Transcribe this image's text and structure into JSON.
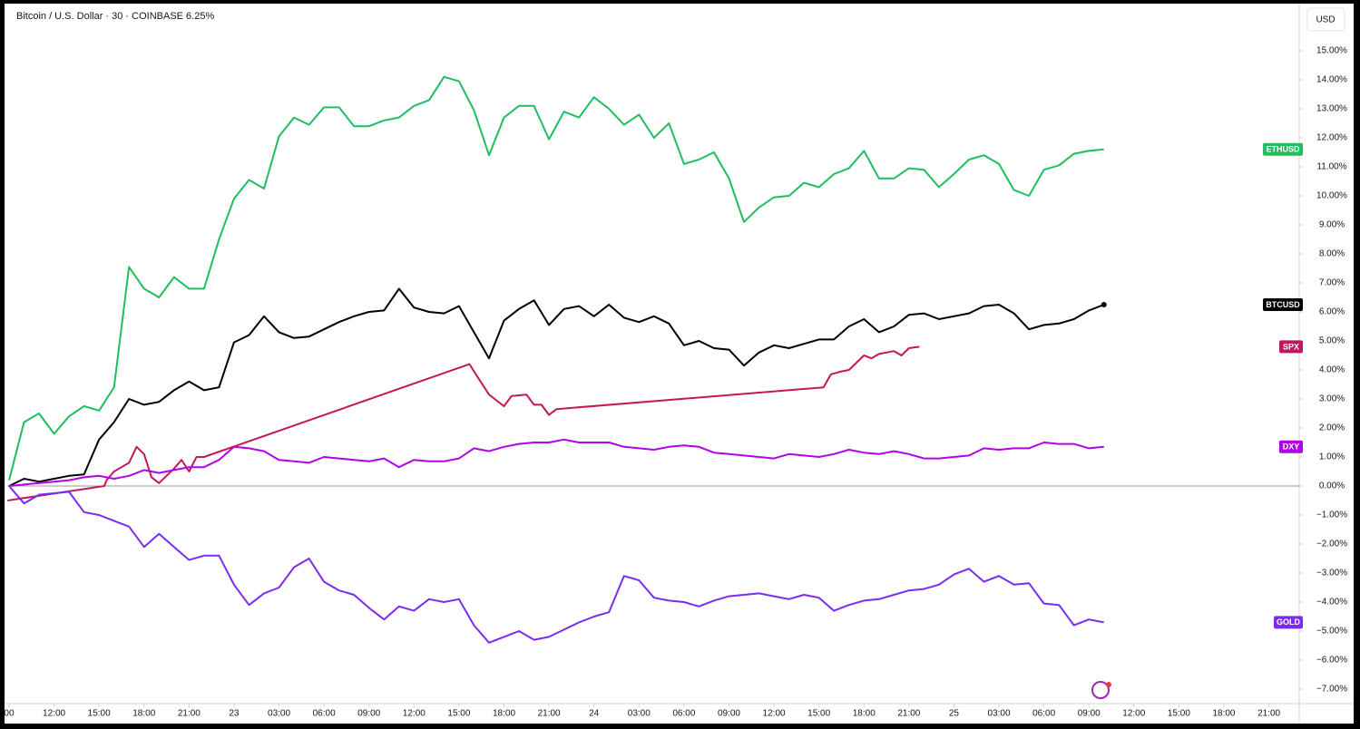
{
  "chart_data": {
    "type": "line",
    "title": "Bitcoin / U.S. Dollar · 30 · COINBASE  6.25%",
    "currency": "USD",
    "xlim": [
      -0.12,
      85.9
    ],
    "ylim": [
      -7.47,
      16.5
    ],
    "baseline": 0,
    "xticks": [
      {
        "value": 0,
        "label": "00"
      },
      {
        "value": 3,
        "label": "12:00"
      },
      {
        "value": 6,
        "label": "15:00"
      },
      {
        "value": 9,
        "label": "18:00"
      },
      {
        "value": 12,
        "label": "21:00"
      },
      {
        "value": 15,
        "label": "23"
      },
      {
        "value": 18,
        "label": "03:00"
      },
      {
        "value": 21,
        "label": "06:00"
      },
      {
        "value": 24,
        "label": "09:00"
      },
      {
        "value": 27,
        "label": "12:00"
      },
      {
        "value": 30,
        "label": "15:00"
      },
      {
        "value": 33,
        "label": "18:00"
      },
      {
        "value": 36,
        "label": "21:00"
      },
      {
        "value": 39,
        "label": "24"
      },
      {
        "value": 42,
        "label": "03:00"
      },
      {
        "value": 45,
        "label": "06:00"
      },
      {
        "value": 48,
        "label": "09:00"
      },
      {
        "value": 51,
        "label": "12:00"
      },
      {
        "value": 54,
        "label": "15:00"
      },
      {
        "value": 57,
        "label": "18:00"
      },
      {
        "value": 60,
        "label": "21:00"
      },
      {
        "value": 63,
        "label": "25"
      },
      {
        "value": 66,
        "label": "03:00"
      },
      {
        "value": 69,
        "label": "06:00"
      },
      {
        "value": 72,
        "label": "09:00"
      },
      {
        "value": 75,
        "label": "12:00"
      },
      {
        "value": 78,
        "label": "15:00"
      },
      {
        "value": 81,
        "label": "18:00"
      },
      {
        "value": 84,
        "label": "21:00"
      }
    ],
    "yticks": [
      {
        "value": 15,
        "label": "15.00%"
      },
      {
        "value": 14,
        "label": "14.00%"
      },
      {
        "value": 13,
        "label": "13.00%"
      },
      {
        "value": 12,
        "label": "12.00%"
      },
      {
        "value": 11,
        "label": "11.00%"
      },
      {
        "value": 10,
        "label": "10.00%"
      },
      {
        "value": 9,
        "label": "9.00%"
      },
      {
        "value": 8,
        "label": "8.00%"
      },
      {
        "value": 7,
        "label": "7.00%"
      },
      {
        "value": 6,
        "label": "6.00%"
      },
      {
        "value": 5,
        "label": "5.00%"
      },
      {
        "value": 4,
        "label": "4.00%"
      },
      {
        "value": 3,
        "label": "3.00%"
      },
      {
        "value": 2,
        "label": "2.00%"
      },
      {
        "value": 1,
        "label": "1.00%"
      },
      {
        "value": 0,
        "label": "0.00%"
      },
      {
        "value": -1,
        "label": "−1.00%"
      },
      {
        "value": -2,
        "label": "−2.00%"
      },
      {
        "value": -3,
        "label": "−3.00%"
      },
      {
        "value": -4,
        "label": "−4.00%"
      },
      {
        "value": -5,
        "label": "−5.00%"
      },
      {
        "value": -6,
        "label": "−6.00%"
      },
      {
        "value": -7,
        "label": "−7.00%"
      }
    ],
    "x": [
      0,
      1,
      2,
      3,
      4,
      5,
      6,
      7,
      8,
      9,
      10,
      11,
      12,
      13,
      14,
      15,
      16,
      17,
      18,
      19,
      20,
      21,
      22,
      23,
      24,
      25,
      26,
      27,
      28,
      29,
      30,
      31,
      32,
      33,
      34,
      35,
      36,
      37,
      38,
      39,
      40,
      41,
      42,
      43,
      44,
      45,
      46,
      47,
      48,
      49,
      50,
      51,
      52,
      53,
      54,
      55,
      56,
      57,
      58,
      59,
      60,
      61,
      62,
      63,
      64,
      65,
      66,
      67,
      68,
      69,
      70,
      71,
      72,
      73
    ],
    "series": [
      {
        "name": "ETHUSD",
        "color": "#1dbf5e",
        "values": [
          0.2,
          2.2,
          2.5,
          1.8,
          2.4,
          2.75,
          2.6,
          3.4,
          7.55,
          6.8,
          6.5,
          7.2,
          6.8,
          6.8,
          8.5,
          9.9,
          10.55,
          10.25,
          12.05,
          12.7,
          12.45,
          13.05,
          13.05,
          12.4,
          12.4,
          12.6,
          12.7,
          13.1,
          13.3,
          14.1,
          13.95,
          12.95,
          11.4,
          12.7,
          13.1,
          13.1,
          11.95,
          12.9,
          12.7,
          13.4,
          13.0,
          12.45,
          12.8,
          12.0,
          12.5,
          11.1,
          11.25,
          11.5,
          10.6,
          9.1,
          9.6,
          9.95,
          10.0,
          10.45,
          10.3,
          10.75,
          10.95,
          11.55,
          10.6,
          10.6,
          10.95,
          10.9,
          10.3,
          10.75,
          11.25,
          11.4,
          11.1,
          10.2,
          10.0,
          10.9,
          11.05,
          11.45,
          11.55,
          11.6
        ]
      },
      {
        "name": "BTCUSD",
        "color": "#000000",
        "marker_last": true,
        "values": [
          0.0,
          0.25,
          0.15,
          0.25,
          0.35,
          0.4,
          1.6,
          2.2,
          3.0,
          2.8,
          2.9,
          3.3,
          3.6,
          3.3,
          3.4,
          4.95,
          5.2,
          5.85,
          5.3,
          5.1,
          5.15,
          5.4,
          5.65,
          5.85,
          6.0,
          6.05,
          6.8,
          6.15,
          6.0,
          5.95,
          6.2,
          5.3,
          4.4,
          5.7,
          6.1,
          6.4,
          5.55,
          6.1,
          6.2,
          5.85,
          6.25,
          5.8,
          5.65,
          5.85,
          5.6,
          4.85,
          5.0,
          4.75,
          4.7,
          4.15,
          4.6,
          4.85,
          4.75,
          4.9,
          5.05,
          5.05,
          5.5,
          5.75,
          5.3,
          5.5,
          5.9,
          5.95,
          5.75,
          5.85,
          5.95,
          6.2,
          6.25,
          5.95,
          5.4,
          5.55,
          5.6,
          5.75,
          6.05,
          6.25
        ]
      },
      {
        "name": "SPX",
        "color": "#c2185b",
        "x": [
          -0.1,
          6.35,
          6.5,
          7,
          8,
          8.5,
          9,
          9.5,
          10,
          11,
          11.5,
          12,
          12.5,
          13,
          30.7,
          31,
          32,
          33,
          33.5,
          34.5,
          35,
          35.5,
          36,
          36.5,
          54.3,
          54.8,
          55.5,
          56,
          57,
          57.5,
          58,
          58.5,
          59,
          59.5,
          60,
          60.7
        ],
        "values": [
          -0.5,
          0.0,
          0.2,
          0.5,
          0.8,
          1.35,
          1.1,
          0.3,
          0.1,
          0.6,
          0.9,
          0.5,
          1.0,
          1.0,
          4.2,
          3.95,
          3.15,
          2.75,
          3.1,
          3.15,
          2.8,
          2.8,
          2.45,
          2.65,
          3.4,
          3.85,
          3.95,
          4.0,
          4.5,
          4.4,
          4.55,
          4.6,
          4.65,
          4.5,
          4.75,
          4.8
        ]
      },
      {
        "name": "DXY",
        "color": "#b400e6",
        "values": [
          0.0,
          0.05,
          0.1,
          0.15,
          0.2,
          0.3,
          0.35,
          0.25,
          0.35,
          0.55,
          0.45,
          0.55,
          0.65,
          0.65,
          0.9,
          1.35,
          1.3,
          1.2,
          0.9,
          0.85,
          0.8,
          1.0,
          0.95,
          0.9,
          0.85,
          0.95,
          0.65,
          0.9,
          0.85,
          0.85,
          0.95,
          1.3,
          1.2,
          1.35,
          1.45,
          1.5,
          1.5,
          1.6,
          1.5,
          1.5,
          1.5,
          1.35,
          1.3,
          1.25,
          1.35,
          1.4,
          1.35,
          1.15,
          1.1,
          1.05,
          1.0,
          0.95,
          1.1,
          1.05,
          1.0,
          1.1,
          1.25,
          1.15,
          1.1,
          1.2,
          1.1,
          0.95,
          0.95,
          1.0,
          1.05,
          1.3,
          1.25,
          1.3,
          1.3,
          1.5,
          1.45,
          1.45,
          1.3,
          1.35
        ]
      },
      {
        "name": "GOLD",
        "color": "#7b2cf2",
        "values": [
          0.0,
          -0.6,
          -0.3,
          -0.25,
          -0.2,
          -0.9,
          -1.0,
          -1.2,
          -1.4,
          -2.1,
          -1.65,
          -2.1,
          -2.55,
          -2.4,
          -2.4,
          -3.4,
          -4.1,
          -3.7,
          -3.5,
          -2.8,
          -2.5,
          -3.3,
          -3.6,
          -3.75,
          -4.2,
          -4.6,
          -4.15,
          -4.3,
          -3.9,
          -4.0,
          -3.9,
          -4.8,
          -5.4,
          -5.2,
          -5.0,
          -5.3,
          -5.2,
          -4.95,
          -4.7,
          -4.5,
          -4.35,
          -3.1,
          -3.25,
          -3.85,
          -3.95,
          -4.0,
          -4.15,
          -3.95,
          -3.8,
          -3.75,
          -3.7,
          -3.8,
          -3.9,
          -3.75,
          -3.85,
          -4.3,
          -4.1,
          -3.95,
          -3.9,
          -3.75,
          -3.6,
          -3.55,
          -3.4,
          -3.05,
          -2.85,
          -3.3,
          -3.1,
          -3.4,
          -3.35,
          -4.05,
          -4.1,
          -4.8,
          -4.6,
          -4.7
        ]
      }
    ]
  }
}
